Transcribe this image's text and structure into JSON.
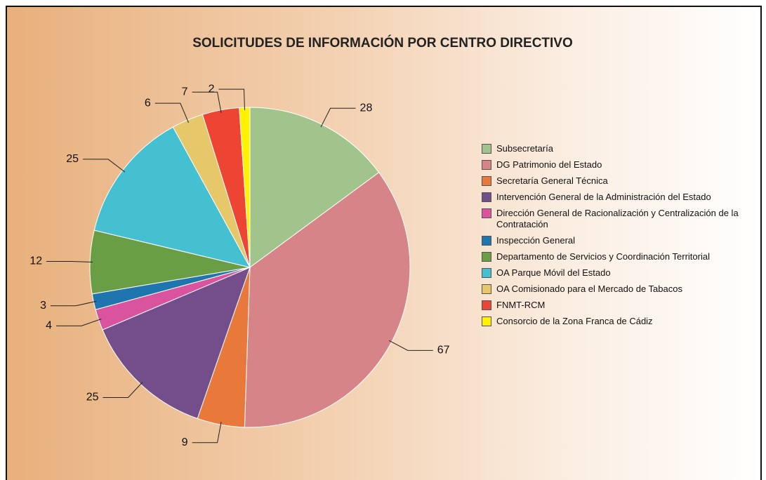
{
  "chart_data": {
    "type": "pie",
    "title": "SOLICITUDES DE INFORMACIÓN POR CENTRO DIRECTIVO",
    "categories": [
      "Subsecretaría",
      "DG Patrimonio del Estado",
      "Secretaría General Técnica",
      "Intervención General de la Administración del Estado",
      "Dirección General de Racionalización y Centralización de la Contratación",
      "Inspección General",
      "Departamento de Servicios y Coordinación Territorial",
      "OA Parque Móvil del Estado",
      "OA Comisionado para el Mercado de Tabacos",
      "FNMT-RCM",
      "Consorcio de la Zona Franca de Cádiz"
    ],
    "values": [
      28,
      67,
      9,
      25,
      4,
      3,
      12,
      25,
      6,
      7,
      2
    ],
    "colors": [
      "#a0c48c",
      "#d68487",
      "#e8793a",
      "#734e8a",
      "#d9539f",
      "#1f75ae",
      "#6a9e45",
      "#45c0d0",
      "#e6c76a",
      "#ee4433",
      "#fff200"
    ],
    "legend": "right"
  }
}
